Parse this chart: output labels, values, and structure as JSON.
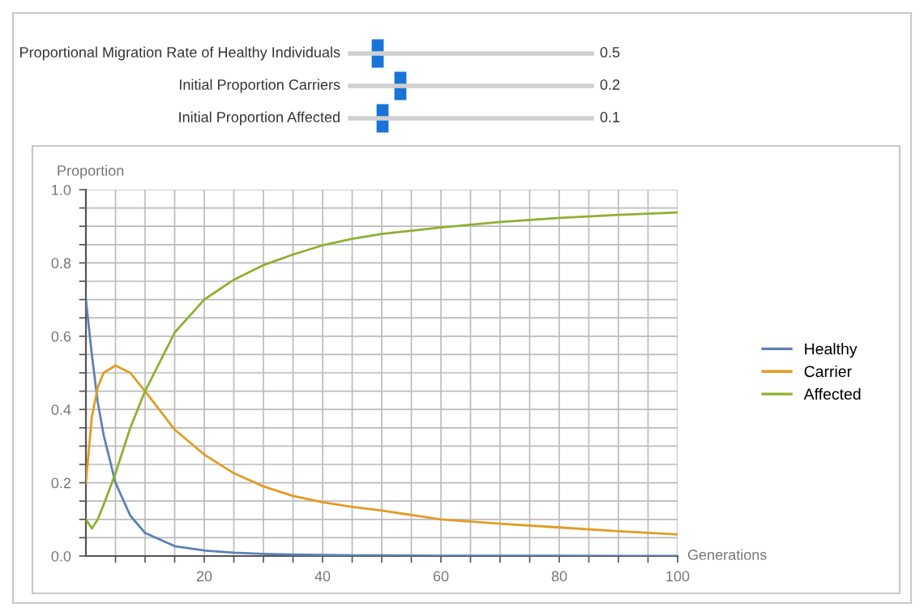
{
  "chart_data": {
    "type": "line",
    "xlabel": "Generations",
    "ylabel": "Proportion",
    "annotations": [
      "Proportional Migration Rate of Healthy Individuals",
      "0.5",
      "Initial Proportion Carriers",
      "0.2",
      "Initial Proportion Affected",
      "0.1"
    ],
    "x": [
      0,
      1,
      2,
      3,
      5,
      7.5,
      10,
      15,
      20,
      25,
      30,
      35,
      40,
      45,
      50,
      60,
      70,
      80,
      90,
      100
    ],
    "series": [
      {
        "name": "Healthy",
        "color": "#5e81b5",
        "values": [
          0.7,
          0.55,
          0.42,
          0.33,
          0.2,
          0.11,
          0.063,
          0.027,
          0.015,
          0.009,
          0.006,
          0.004,
          0.003,
          0.002,
          0.002,
          0.001,
          0.001,
          0.001,
          0.0,
          0.0
        ]
      },
      {
        "name": "Carrier",
        "color": "#e19c24",
        "values": [
          0.2,
          0.38,
          0.46,
          0.5,
          0.52,
          0.5,
          0.45,
          0.345,
          0.277,
          0.226,
          0.19,
          0.164,
          0.147,
          0.134,
          0.124,
          0.1,
          0.088,
          0.078,
          0.068,
          0.059
        ]
      },
      {
        "name": "Affected",
        "color": "#8fb032",
        "values": [
          0.1,
          0.075,
          0.1,
          0.14,
          0.226,
          0.35,
          0.45,
          0.61,
          0.7,
          0.754,
          0.794,
          0.823,
          0.848,
          0.866,
          0.879,
          0.897,
          0.912,
          0.923,
          0.931,
          0.938
        ]
      }
    ],
    "xlim": [
      0,
      100
    ],
    "ylim": [
      0,
      1.0
    ],
    "xticks": [
      {
        "value": 5,
        "label": null
      },
      {
        "value": 10,
        "label": null
      },
      {
        "value": 15,
        "label": null
      },
      20,
      {
        "value": 25,
        "label": null
      },
      {
        "value": 30,
        "label": null
      },
      {
        "value": 35,
        "label": null
      },
      40,
      {
        "value": 45,
        "label": null
      },
      {
        "value": 50,
        "label": null
      },
      {
        "value": 55,
        "label": null
      },
      60,
      {
        "value": 65,
        "label": null
      },
      {
        "value": 70,
        "label": null
      },
      {
        "value": 75,
        "label": null
      },
      80,
      {
        "value": 85,
        "label": null
      },
      {
        "value": 90,
        "label": null
      },
      {
        "value": 95,
        "label": null
      },
      100
    ],
    "yticks": [
      {
        "value": 0,
        "label": "0.0"
      },
      {
        "value": 0.05,
        "label": null
      },
      {
        "value": 0.1,
        "label": null
      },
      {
        "value": 0.15,
        "label": null
      },
      0.2,
      {
        "value": 0.25,
        "label": null
      },
      {
        "value": 0.3,
        "label": null
      },
      {
        "value": 0.35,
        "label": null
      },
      0.4,
      {
        "value": 0.45,
        "label": null
      },
      {
        "value": 0.5,
        "label": null
      },
      {
        "value": 0.55,
        "label": null
      },
      0.6,
      {
        "value": 0.65,
        "label": null
      },
      {
        "value": 0.7,
        "label": null
      },
      {
        "value": 0.75,
        "label": null
      },
      0.8,
      {
        "value": 0.85,
        "label": null
      },
      {
        "value": 0.9,
        "label": null
      },
      {
        "value": 0.95,
        "label": null
      },
      {
        "value": 1.0,
        "label": "1.0"
      }
    ],
    "grid": true,
    "legend": "right",
    "marker": "none",
    "line_style": "solid"
  }
}
